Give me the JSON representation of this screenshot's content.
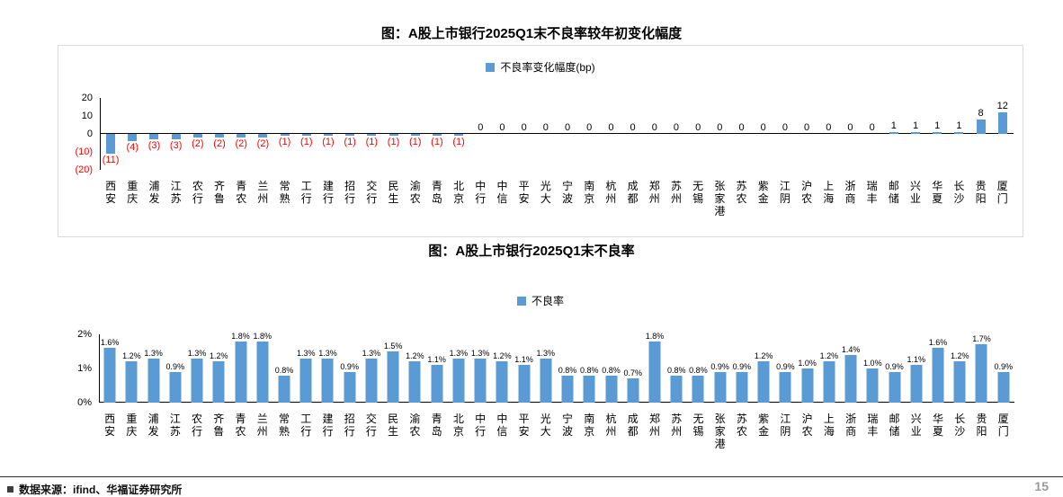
{
  "colors": {
    "bar": "#5B9BD5",
    "negative_label": "#FF0000",
    "axis": "#000000"
  },
  "footer": {
    "source": "数据来源：ifind、华福证券研究所",
    "page_number": "15"
  },
  "chart_data": [
    {
      "type": "bar",
      "title": "图：A股上市银行2025Q1末不良率较年初变化幅度",
      "legend": "不良率变化幅度(bp)",
      "xlabel": "",
      "ylabel": "",
      "ylim": [
        -20,
        20
      ],
      "grid": false,
      "legend_position": "top-center",
      "yticks": [
        {
          "label": "20",
          "value": 20,
          "negative": false
        },
        {
          "label": "10",
          "value": 10,
          "negative": false
        },
        {
          "label": "0",
          "value": 0,
          "negative": false
        },
        {
          "label": "(10)",
          "value": -10,
          "negative": true
        },
        {
          "label": "(20)",
          "value": -20,
          "negative": true
        }
      ],
      "categories": [
        "西安",
        "重庆",
        "浦发",
        "江苏",
        "农行",
        "齐鲁",
        "青农",
        "兰州",
        "常熟",
        "工行",
        "建行",
        "招行",
        "交行",
        "民生",
        "渝农",
        "青岛",
        "北京",
        "中行",
        "中信",
        "平安",
        "光大",
        "宁波",
        "南京",
        "杭州",
        "成都",
        "郑州",
        "苏州",
        "无锡",
        "张家港",
        "苏农",
        "紫金",
        "江阴",
        "沪农",
        "上海",
        "浙商",
        "瑞丰",
        "邮储",
        "兴业",
        "华夏",
        "长沙",
        "贵阳",
        "厦门"
      ],
      "values": [
        -11,
        -4,
        -3,
        -3,
        -2,
        -2,
        -2,
        -2,
        -1,
        -1,
        -1,
        -1,
        -1,
        -1,
        -1,
        -1,
        -1,
        0,
        0,
        0,
        0,
        0,
        0,
        0,
        0,
        0,
        0,
        0,
        0,
        0,
        0,
        0,
        0,
        0,
        0,
        0,
        1,
        1,
        1,
        1,
        8,
        12
      ],
      "labels": [
        "(11)",
        "(4)",
        "(3)",
        "(3)",
        "(2)",
        "(2)",
        "(2)",
        "(2)",
        "(1)",
        "(1)",
        "(1)",
        "(1)",
        "(1)",
        "(1)",
        "(1)",
        "(1)",
        "(1)",
        "0",
        "0",
        "0",
        "0",
        "0",
        "0",
        "0",
        "0",
        "0",
        "0",
        "0",
        "0",
        "0",
        "0",
        "0",
        "0",
        "0",
        "0",
        "0",
        "1",
        "1",
        "1",
        "1",
        "8",
        "12"
      ]
    },
    {
      "type": "bar",
      "title": "图：A股上市银行2025Q1末不良率",
      "legend": "不良率",
      "xlabel": "",
      "ylabel": "",
      "ylim": [
        0,
        2
      ],
      "grid": false,
      "legend_position": "top-center",
      "yticks": [
        {
          "label": "2%",
          "value": 2,
          "negative": false
        },
        {
          "label": "1%",
          "value": 1,
          "negative": false
        },
        {
          "label": "0%",
          "value": 0,
          "negative": false
        }
      ],
      "categories": [
        "西安",
        "重庆",
        "浦发",
        "江苏",
        "农行",
        "齐鲁",
        "青农",
        "兰州",
        "常熟",
        "工行",
        "建行",
        "招行",
        "交行",
        "民生",
        "渝农",
        "青岛",
        "北京",
        "中行",
        "中信",
        "平安",
        "光大",
        "宁波",
        "南京",
        "杭州",
        "成都",
        "郑州",
        "苏州",
        "无锡",
        "张家港",
        "苏农",
        "紫金",
        "江阴",
        "沪农",
        "上海",
        "浙商",
        "瑞丰",
        "邮储",
        "兴业",
        "华夏",
        "长沙",
        "贵阳",
        "厦门"
      ],
      "values": [
        1.6,
        1.2,
        1.3,
        0.9,
        1.3,
        1.2,
        1.8,
        1.8,
        0.8,
        1.3,
        1.3,
        0.9,
        1.3,
        1.5,
        1.2,
        1.1,
        1.3,
        1.3,
        1.2,
        1.1,
        1.3,
        0.8,
        0.8,
        0.8,
        0.7,
        1.8,
        0.8,
        0.8,
        0.9,
        0.9,
        1.2,
        0.9,
        1.0,
        1.2,
        1.4,
        1.0,
        0.9,
        1.1,
        1.6,
        1.2,
        1.7,
        0.9
      ],
      "labels": [
        "1.6%",
        "1.2%",
        "1.3%",
        "0.9%",
        "1.3%",
        "1.2%",
        "1.8%",
        "1.8%",
        "0.8%",
        "1.3%",
        "1.3%",
        "0.9%",
        "1.3%",
        "1.5%",
        "1.2%",
        "1.1%",
        "1.3%",
        "1.3%",
        "1.2%",
        "1.1%",
        "1.3%",
        "0.8%",
        "0.8%",
        "0.8%",
        "0.7%",
        "1.8%",
        "0.8%",
        "0.8%",
        "0.9%",
        "0.9%",
        "1.2%",
        "0.9%",
        "1.0%",
        "1.2%",
        "1.4%",
        "1.0%",
        "0.9%",
        "1.1%",
        "1.6%",
        "1.2%",
        "1.7%",
        "0.9%"
      ]
    }
  ]
}
